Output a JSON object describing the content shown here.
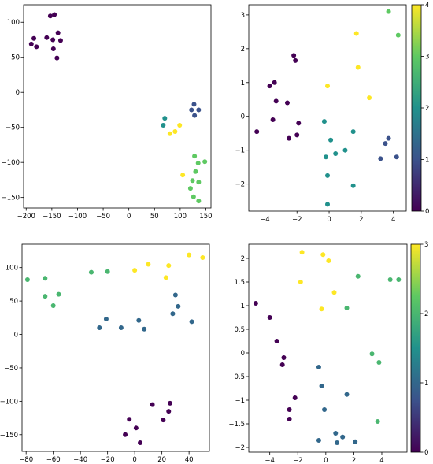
{
  "chart_data": [
    {
      "type": "scatter",
      "xlim": [
        -205,
        160
      ],
      "ylim": [
        -165,
        125
      ],
      "xticks": [
        -200,
        -150,
        -100,
        -50,
        0,
        50,
        100,
        150
      ],
      "yticks": [
        100,
        50,
        0,
        -50,
        -100,
        -150
      ],
      "colorbar": null,
      "points": [
        {
          "x": -153,
          "y": 109,
          "c": 0
        },
        {
          "x": -145,
          "y": 111,
          "c": 0
        },
        {
          "x": -185,
          "y": 77,
          "c": 0
        },
        {
          "x": -160,
          "y": 78,
          "c": 0
        },
        {
          "x": -148,
          "y": 75,
          "c": 0
        },
        {
          "x": -138,
          "y": 85,
          "c": 0
        },
        {
          "x": -133,
          "y": 74,
          "c": 0
        },
        {
          "x": -190,
          "y": 69,
          "c": 0
        },
        {
          "x": -180,
          "y": 65,
          "c": 0
        },
        {
          "x": -147,
          "y": 62,
          "c": 0
        },
        {
          "x": -140,
          "y": 49,
          "c": 0
        },
        {
          "x": 122,
          "y": -25,
          "c": 1
        },
        {
          "x": 127,
          "y": -17,
          "c": 1
        },
        {
          "x": 136,
          "y": -25,
          "c": 1
        },
        {
          "x": 128,
          "y": -33,
          "c": 1
        },
        {
          "x": 70,
          "y": -37,
          "c": 2
        },
        {
          "x": 67,
          "y": -47,
          "c": 2
        },
        {
          "x": 128,
          "y": -91,
          "c": 3
        },
        {
          "x": 148,
          "y": -99,
          "c": 3
        },
        {
          "x": 135,
          "y": -101,
          "c": 3
        },
        {
          "x": 130,
          "y": -113,
          "c": 3
        },
        {
          "x": 124,
          "y": -126,
          "c": 3
        },
        {
          "x": 136,
          "y": -128,
          "c": 3
        },
        {
          "x": 120,
          "y": -137,
          "c": 3
        },
        {
          "x": 126,
          "y": -149,
          "c": 3
        },
        {
          "x": 136,
          "y": -155,
          "c": 3
        },
        {
          "x": 99,
          "y": -47,
          "c": 4
        },
        {
          "x": 80,
          "y": -59,
          "c": 4
        },
        {
          "x": 90,
          "y": -56,
          "c": 4
        },
        {
          "x": 105,
          "y": -118,
          "c": 4
        }
      ]
    },
    {
      "type": "scatter",
      "xlim": [
        -5.0,
        4.8
      ],
      "ylim": [
        -2.8,
        3.3
      ],
      "xticks": [
        -4,
        -2,
        0,
        2,
        4
      ],
      "yticks": [
        3,
        2,
        1,
        0,
        -1,
        -2
      ],
      "colorbar": {
        "min": 0,
        "max": 4,
        "ticks": [
          4,
          3,
          2,
          1,
          0
        ]
      },
      "points": [
        {
          "x": -2.2,
          "y": 1.8,
          "c": 0
        },
        {
          "x": -2.1,
          "y": 1.65,
          "c": 0
        },
        {
          "x": -3.4,
          "y": 1.0,
          "c": 0
        },
        {
          "x": -3.7,
          "y": 0.9,
          "c": 0
        },
        {
          "x": -3.3,
          "y": 0.45,
          "c": 0
        },
        {
          "x": -2.6,
          "y": 0.4,
          "c": 0
        },
        {
          "x": -3.5,
          "y": -0.1,
          "c": 0
        },
        {
          "x": -1.9,
          "y": -0.2,
          "c": 0
        },
        {
          "x": -2.0,
          "y": -0.55,
          "c": 0
        },
        {
          "x": -2.5,
          "y": -0.65,
          "c": 0
        },
        {
          "x": -4.5,
          "y": -0.45,
          "c": 0
        },
        {
          "x": 3.7,
          "y": -0.65,
          "c": 1
        },
        {
          "x": 3.5,
          "y": -0.8,
          "c": 1
        },
        {
          "x": 4.2,
          "y": -1.2,
          "c": 1
        },
        {
          "x": 3.2,
          "y": -1.25,
          "c": 1
        },
        {
          "x": 3.7,
          "y": 3.1,
          "c": 3
        },
        {
          "x": 4.3,
          "y": 2.4,
          "c": 3
        },
        {
          "x": -0.3,
          "y": -0.15,
          "c": 2
        },
        {
          "x": 0.1,
          "y": -0.7,
          "c": 2
        },
        {
          "x": 1.5,
          "y": -0.45,
          "c": 2
        },
        {
          "x": 1.0,
          "y": -1.0,
          "c": 2
        },
        {
          "x": 0.4,
          "y": -1.1,
          "c": 2
        },
        {
          "x": -0.2,
          "y": -1.2,
          "c": 2
        },
        {
          "x": -0.1,
          "y": -1.75,
          "c": 2
        },
        {
          "x": 1.5,
          "y": -2.05,
          "c": 2
        },
        {
          "x": -0.1,
          "y": -2.6,
          "c": 2
        },
        {
          "x": 1.7,
          "y": 2.45,
          "c": 4
        },
        {
          "x": 1.8,
          "y": 1.45,
          "c": 4
        },
        {
          "x": -0.1,
          "y": 0.9,
          "c": 4
        },
        {
          "x": 2.5,
          "y": 0.55,
          "c": 4
        }
      ]
    },
    {
      "type": "scatter",
      "xlim": [
        -83,
        55
      ],
      "ylim": [
        -175,
        135
      ],
      "xticks": [
        -80,
        -60,
        -40,
        -20,
        0,
        20,
        40
      ],
      "yticks": [
        100,
        50,
        0,
        -50,
        -100,
        -150
      ],
      "colorbar": null,
      "points": [
        {
          "x": -79,
          "y": 82,
          "c": 2
        },
        {
          "x": -66,
          "y": 84,
          "c": 2
        },
        {
          "x": -66,
          "y": 57,
          "c": 2
        },
        {
          "x": -56,
          "y": 60,
          "c": 2
        },
        {
          "x": -60,
          "y": 43,
          "c": 2
        },
        {
          "x": -32,
          "y": 93,
          "c": 2
        },
        {
          "x": -20,
          "y": 94,
          "c": 2
        },
        {
          "x": 0,
          "y": 96,
          "c": 3
        },
        {
          "x": 10,
          "y": 105,
          "c": 3
        },
        {
          "x": 25,
          "y": 103,
          "c": 3
        },
        {
          "x": 23,
          "y": 85,
          "c": 3
        },
        {
          "x": 40,
          "y": 119,
          "c": 3
        },
        {
          "x": 50,
          "y": 115,
          "c": 3
        },
        {
          "x": -21,
          "y": 23,
          "c": 1
        },
        {
          "x": -26,
          "y": 10,
          "c": 1
        },
        {
          "x": -10,
          "y": 10,
          "c": 1
        },
        {
          "x": 3,
          "y": 21,
          "c": 1
        },
        {
          "x": 7,
          "y": 8,
          "c": 1
        },
        {
          "x": 30,
          "y": 59,
          "c": 1
        },
        {
          "x": 32,
          "y": 42,
          "c": 1
        },
        {
          "x": 28,
          "y": 31,
          "c": 1
        },
        {
          "x": 42,
          "y": 19,
          "c": 1
        },
        {
          "x": 13,
          "y": -105,
          "c": 0
        },
        {
          "x": 26,
          "y": -103,
          "c": 0
        },
        {
          "x": 25,
          "y": -115,
          "c": 0
        },
        {
          "x": 21,
          "y": -128,
          "c": 0
        },
        {
          "x": -4,
          "y": -127,
          "c": 0
        },
        {
          "x": 1,
          "y": -140,
          "c": 0
        },
        {
          "x": -7,
          "y": -150,
          "c": 0
        },
        {
          "x": 4,
          "y": -162,
          "c": 0
        }
      ]
    },
    {
      "type": "scatter",
      "xlim": [
        -5.5,
        5.8
      ],
      "ylim": [
        -2.1,
        2.3
      ],
      "xticks": [
        -4,
        -2,
        0,
        2,
        4
      ],
      "yticks": [
        2.0,
        1.5,
        1.0,
        0.5,
        0.0,
        -0.5,
        -1.0,
        -1.5,
        -2.0
      ],
      "colorbar": {
        "min": 0,
        "max": 3,
        "ticks": [
          3,
          2,
          1,
          0
        ]
      },
      "points": [
        {
          "x": -5.0,
          "y": 1.05,
          "c": 0
        },
        {
          "x": -4.0,
          "y": 0.75,
          "c": 0
        },
        {
          "x": -3.5,
          "y": 0.25,
          "c": 0
        },
        {
          "x": -3.0,
          "y": -0.1,
          "c": 0
        },
        {
          "x": -3.1,
          "y": -0.25,
          "c": 0
        },
        {
          "x": -2.2,
          "y": -0.95,
          "c": 0
        },
        {
          "x": -2.6,
          "y": -1.2,
          "c": 0
        },
        {
          "x": -2.6,
          "y": -1.4,
          "c": 0
        },
        {
          "x": -0.5,
          "y": -0.3,
          "c": 1
        },
        {
          "x": -0.3,
          "y": -0.7,
          "c": 1
        },
        {
          "x": 1.5,
          "y": -0.88,
          "c": 1
        },
        {
          "x": -0.1,
          "y": -1.2,
          "c": 1
        },
        {
          "x": -0.5,
          "y": -1.85,
          "c": 1
        },
        {
          "x": 0.7,
          "y": -1.7,
          "c": 1
        },
        {
          "x": 1.2,
          "y": -1.78,
          "c": 1
        },
        {
          "x": 2.1,
          "y": -1.88,
          "c": 1
        },
        {
          "x": 0.8,
          "y": -1.9,
          "c": 1
        },
        {
          "x": 2.3,
          "y": 1.62,
          "c": 2
        },
        {
          "x": 4.6,
          "y": 1.55,
          "c": 2
        },
        {
          "x": 5.2,
          "y": 1.55,
          "c": 2
        },
        {
          "x": 1.5,
          "y": 0.95,
          "c": 2
        },
        {
          "x": 3.3,
          "y": -0.02,
          "c": 2
        },
        {
          "x": 3.8,
          "y": -0.2,
          "c": 2
        },
        {
          "x": 3.7,
          "y": -1.45,
          "c": 2
        },
        {
          "x": -1.7,
          "y": 2.13,
          "c": 3
        },
        {
          "x": -0.2,
          "y": 2.08,
          "c": 3
        },
        {
          "x": 0.2,
          "y": 1.95,
          "c": 3
        },
        {
          "x": -1.8,
          "y": 1.5,
          "c": 3
        },
        {
          "x": 0.6,
          "y": 1.28,
          "c": 3
        },
        {
          "x": -0.3,
          "y": 0.93,
          "c": 3
        }
      ]
    }
  ]
}
